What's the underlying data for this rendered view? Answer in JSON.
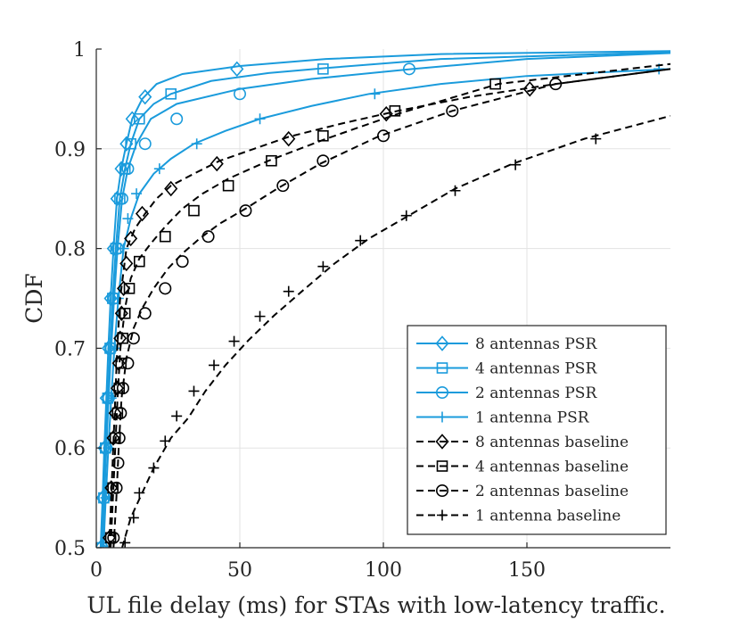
{
  "chart_data": {
    "type": "line",
    "title": "",
    "xlabel": "UL file delay (ms) for STAs with low-latency traffic.",
    "ylabel": "CDF",
    "xlim": [
      0,
      200
    ],
    "ylim": [
      0.5,
      1.0
    ],
    "xticks": [
      0,
      50,
      100,
      150
    ],
    "yticks": [
      0.5,
      0.6,
      0.7,
      0.8,
      0.9,
      1.0
    ],
    "xtick_labels": [
      "0",
      "50",
      "100",
      "150"
    ],
    "ytick_labels": [
      "0.5",
      "0.6",
      "0.7",
      "0.8",
      "0.9",
      "1"
    ],
    "grid": true,
    "legend_position": "bottom-right",
    "series": [
      {
        "name": "8 antennas PSR",
        "color": "#1a9bdc",
        "linestyle": "solid",
        "marker": "diamond",
        "points": [
          [
            1.5,
            0.5
          ],
          [
            2.2,
            0.55
          ],
          [
            2.8,
            0.6
          ],
          [
            3.5,
            0.65
          ],
          [
            4.2,
            0.7
          ],
          [
            5.0,
            0.75
          ],
          [
            6.0,
            0.8
          ],
          [
            7.2,
            0.85
          ],
          [
            8.7,
            0.88
          ],
          [
            10.5,
            0.905
          ],
          [
            12.5,
            0.93
          ],
          [
            16,
            0.95
          ],
          [
            21,
            0.965
          ],
          [
            30,
            0.975
          ],
          [
            50,
            0.983
          ],
          [
            80,
            0.99
          ],
          [
            120,
            0.995
          ],
          [
            200,
            0.998
          ]
        ],
        "markers": [
          [
            1.5,
            0.5
          ],
          [
            2.2,
            0.55
          ],
          [
            2.8,
            0.6
          ],
          [
            3.5,
            0.65
          ],
          [
            4.2,
            0.7
          ],
          [
            5.0,
            0.75
          ],
          [
            6.0,
            0.8
          ],
          [
            7.2,
            0.85
          ],
          [
            8.7,
            0.88
          ],
          [
            10.5,
            0.905
          ],
          [
            12.5,
            0.93
          ],
          [
            17,
            0.952
          ],
          [
            49,
            0.98
          ]
        ]
      },
      {
        "name": "4 antennas PSR",
        "color": "#1a9bdc",
        "linestyle": "solid",
        "marker": "square",
        "points": [
          [
            1.8,
            0.5
          ],
          [
            2.6,
            0.55
          ],
          [
            3.2,
            0.6
          ],
          [
            4.0,
            0.65
          ],
          [
            4.8,
            0.7
          ],
          [
            5.7,
            0.75
          ],
          [
            6.8,
            0.8
          ],
          [
            8.2,
            0.85
          ],
          [
            10,
            0.88
          ],
          [
            12,
            0.905
          ],
          [
            15,
            0.93
          ],
          [
            20,
            0.945
          ],
          [
            26,
            0.955
          ],
          [
            40,
            0.968
          ],
          [
            60,
            0.976
          ],
          [
            80,
            0.981
          ],
          [
            120,
            0.99
          ],
          [
            200,
            0.997
          ]
        ],
        "markers": [
          [
            1.8,
            0.5
          ],
          [
            2.6,
            0.55
          ],
          [
            3.2,
            0.6
          ],
          [
            4.0,
            0.65
          ],
          [
            4.8,
            0.7
          ],
          [
            5.7,
            0.75
          ],
          [
            6.8,
            0.8
          ],
          [
            8.2,
            0.85
          ],
          [
            10,
            0.88
          ],
          [
            12,
            0.905
          ],
          [
            15,
            0.93
          ],
          [
            26,
            0.955
          ],
          [
            79,
            0.98
          ]
        ]
      },
      {
        "name": "2 antennas PSR",
        "color": "#1a9bdc",
        "linestyle": "solid",
        "marker": "circle",
        "points": [
          [
            2.0,
            0.5
          ],
          [
            2.8,
            0.55
          ],
          [
            3.5,
            0.6
          ],
          [
            4.3,
            0.65
          ],
          [
            5.2,
            0.7
          ],
          [
            6.2,
            0.75
          ],
          [
            7.4,
            0.8
          ],
          [
            9.0,
            0.85
          ],
          [
            11,
            0.88
          ],
          [
            14,
            0.905
          ],
          [
            19,
            0.93
          ],
          [
            28,
            0.945
          ],
          [
            50,
            0.96
          ],
          [
            75,
            0.97
          ],
          [
            110,
            0.98
          ],
          [
            150,
            0.99
          ],
          [
            200,
            0.996
          ]
        ],
        "markers": [
          [
            2.0,
            0.5
          ],
          [
            2.8,
            0.55
          ],
          [
            3.5,
            0.6
          ],
          [
            4.3,
            0.65
          ],
          [
            5.2,
            0.7
          ],
          [
            6.2,
            0.75
          ],
          [
            7.4,
            0.8
          ],
          [
            9.0,
            0.85
          ],
          [
            11,
            0.88
          ],
          [
            17,
            0.905
          ],
          [
            28,
            0.93
          ],
          [
            50,
            0.955
          ],
          [
            109,
            0.98
          ]
        ]
      },
      {
        "name": "1 antenna PSR",
        "color": "#1a9bdc",
        "linestyle": "solid",
        "marker": "plus",
        "points": [
          [
            2.5,
            0.5
          ],
          [
            3.3,
            0.55
          ],
          [
            4.2,
            0.6
          ],
          [
            5.2,
            0.65
          ],
          [
            6.3,
            0.7
          ],
          [
            7.7,
            0.75
          ],
          [
            9.5,
            0.8
          ],
          [
            12,
            0.83
          ],
          [
            15,
            0.855
          ],
          [
            20,
            0.875
          ],
          [
            26,
            0.89
          ],
          [
            34,
            0.905
          ],
          [
            45,
            0.918
          ],
          [
            57,
            0.93
          ],
          [
            75,
            0.943
          ],
          [
            95,
            0.955
          ],
          [
            120,
            0.965
          ],
          [
            150,
            0.973
          ],
          [
            200,
            0.98
          ]
        ],
        "markers": [
          [
            2.5,
            0.5
          ],
          [
            3.3,
            0.55
          ],
          [
            4.2,
            0.6
          ],
          [
            5.2,
            0.65
          ],
          [
            6.3,
            0.7
          ],
          [
            7.7,
            0.75
          ],
          [
            9.5,
            0.8
          ],
          [
            11,
            0.83
          ],
          [
            14,
            0.855
          ],
          [
            22,
            0.88
          ],
          [
            35,
            0.905
          ],
          [
            57,
            0.93
          ],
          [
            97,
            0.955
          ],
          [
            196,
            0.98
          ]
        ]
      },
      {
        "name": "8 antennas baseline",
        "color": "#000000",
        "linestyle": "dashed",
        "marker": "diamond",
        "points": [
          [
            4.5,
            0.5
          ],
          [
            5.2,
            0.55
          ],
          [
            5.9,
            0.6
          ],
          [
            6.6,
            0.65
          ],
          [
            7.3,
            0.7
          ],
          [
            8.3,
            0.75
          ],
          [
            10.5,
            0.8
          ],
          [
            13.5,
            0.82
          ],
          [
            17,
            0.835
          ],
          [
            21,
            0.85
          ],
          [
            26,
            0.863
          ],
          [
            34,
            0.875
          ],
          [
            43,
            0.888
          ],
          [
            55,
            0.9
          ],
          [
            67,
            0.912
          ],
          [
            85,
            0.925
          ],
          [
            105,
            0.938
          ],
          [
            130,
            0.952
          ],
          [
            160,
            0.965
          ],
          [
            200,
            0.98
          ]
        ],
        "markers": [
          [
            4.5,
            0.51
          ],
          [
            5.2,
            0.56
          ],
          [
            5.9,
            0.61
          ],
          [
            6.6,
            0.635
          ],
          [
            7.3,
            0.66
          ],
          [
            7.8,
            0.685
          ],
          [
            8.3,
            0.71
          ],
          [
            8.8,
            0.735
          ],
          [
            9.5,
            0.76
          ],
          [
            10.5,
            0.785
          ],
          [
            12,
            0.81
          ],
          [
            16,
            0.835
          ],
          [
            26,
            0.86
          ],
          [
            42,
            0.885
          ],
          [
            67,
            0.91
          ],
          [
            101,
            0.935
          ],
          [
            151,
            0.96
          ]
        ]
      },
      {
        "name": "4 antennas baseline",
        "color": "#000000",
        "linestyle": "dashed",
        "marker": "square",
        "points": [
          [
            5,
            0.5
          ],
          [
            5.8,
            0.55
          ],
          [
            6.6,
            0.6
          ],
          [
            7.4,
            0.65
          ],
          [
            8.4,
            0.7
          ],
          [
            10,
            0.74
          ],
          [
            12,
            0.77
          ],
          [
            15,
            0.79
          ],
          [
            19,
            0.805
          ],
          [
            24,
            0.822
          ],
          [
            30,
            0.84
          ],
          [
            37,
            0.855
          ],
          [
            46,
            0.87
          ],
          [
            60,
            0.888
          ],
          [
            80,
            0.91
          ],
          [
            105,
            0.935
          ],
          [
            140,
            0.965
          ],
          [
            200,
            0.985
          ]
        ],
        "markers": [
          [
            5,
            0.51
          ],
          [
            5.8,
            0.56
          ],
          [
            6.6,
            0.61
          ],
          [
            7.4,
            0.635
          ],
          [
            8.0,
            0.66
          ],
          [
            8.6,
            0.685
          ],
          [
            9.2,
            0.71
          ],
          [
            10,
            0.735
          ],
          [
            11.5,
            0.76
          ],
          [
            15,
            0.787
          ],
          [
            24,
            0.812
          ],
          [
            34,
            0.838
          ],
          [
            46,
            0.863
          ],
          [
            61,
            0.888
          ],
          [
            79,
            0.913
          ],
          [
            104,
            0.938
          ],
          [
            139,
            0.965
          ]
        ]
      },
      {
        "name": "2 antennas baseline",
        "color": "#000000",
        "linestyle": "dashed",
        "marker": "circle",
        "points": [
          [
            6,
            0.5
          ],
          [
            7,
            0.55
          ],
          [
            7.8,
            0.6
          ],
          [
            8.8,
            0.65
          ],
          [
            10.5,
            0.69
          ],
          [
            13,
            0.72
          ],
          [
            16,
            0.74
          ],
          [
            20,
            0.76
          ],
          [
            25,
            0.78
          ],
          [
            30,
            0.795
          ],
          [
            36,
            0.81
          ],
          [
            43,
            0.825
          ],
          [
            52,
            0.84
          ],
          [
            63,
            0.86
          ],
          [
            78,
            0.885
          ],
          [
            98,
            0.912
          ],
          [
            124,
            0.938
          ],
          [
            160,
            0.965
          ],
          [
            200,
            0.98
          ]
        ],
        "markers": [
          [
            6,
            0.51
          ],
          [
            7,
            0.56
          ],
          [
            7.6,
            0.585
          ],
          [
            8.0,
            0.61
          ],
          [
            8.5,
            0.635
          ],
          [
            9.3,
            0.66
          ],
          [
            11,
            0.685
          ],
          [
            13,
            0.71
          ],
          [
            17,
            0.735
          ],
          [
            24,
            0.76
          ],
          [
            30,
            0.787
          ],
          [
            39,
            0.812
          ],
          [
            52,
            0.838
          ],
          [
            65,
            0.863
          ],
          [
            79,
            0.888
          ],
          [
            100,
            0.913
          ],
          [
            124,
            0.938
          ],
          [
            160,
            0.965
          ]
        ]
      },
      {
        "name": "1 antenna baseline",
        "color": "#000000",
        "linestyle": "dashed",
        "marker": "plus",
        "points": [
          [
            9,
            0.5
          ],
          [
            12,
            0.53
          ],
          [
            16,
            0.555
          ],
          [
            20,
            0.58
          ],
          [
            26,
            0.61
          ],
          [
            32,
            0.63
          ],
          [
            38,
            0.657
          ],
          [
            45,
            0.683
          ],
          [
            53,
            0.708
          ],
          [
            62,
            0.733
          ],
          [
            72,
            0.758
          ],
          [
            83,
            0.785
          ],
          [
            95,
            0.81
          ],
          [
            110,
            0.835
          ],
          [
            125,
            0.86
          ],
          [
            145,
            0.885
          ],
          [
            170,
            0.91
          ],
          [
            200,
            0.933
          ]
        ],
        "markers": [
          [
            10,
            0.505
          ],
          [
            13,
            0.53
          ],
          [
            15,
            0.555
          ],
          [
            20,
            0.58
          ],
          [
            24,
            0.607
          ],
          [
            28,
            0.632
          ],
          [
            34,
            0.657
          ],
          [
            41,
            0.683
          ],
          [
            48,
            0.707
          ],
          [
            57,
            0.732
          ],
          [
            67,
            0.757
          ],
          [
            79,
            0.782
          ],
          [
            92,
            0.808
          ],
          [
            108,
            0.833
          ],
          [
            125,
            0.858
          ],
          [
            146,
            0.884
          ],
          [
            174,
            0.91
          ]
        ]
      }
    ]
  }
}
